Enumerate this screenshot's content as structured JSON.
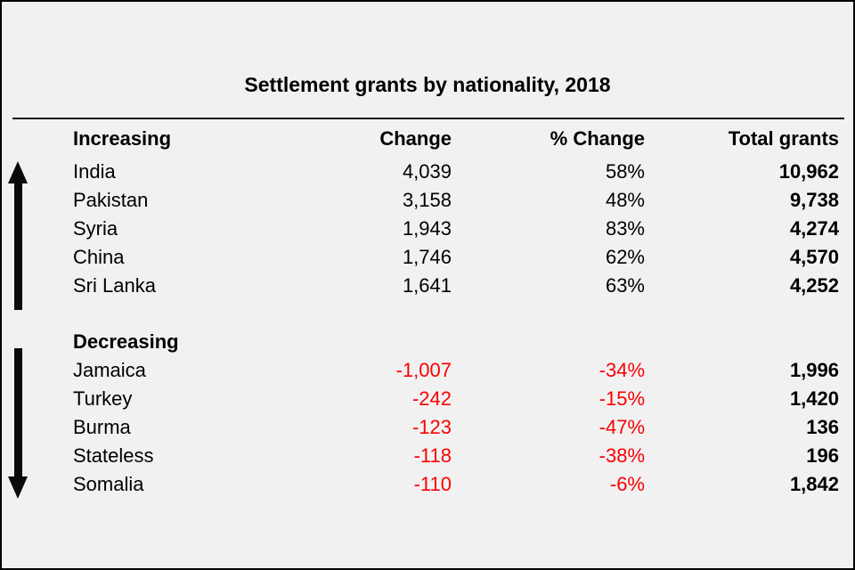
{
  "title": "Settlement grants by nationality, 2018",
  "colors": {
    "background": "#f1f1f2",
    "text": "#000000",
    "negative": "#fa0000",
    "arrow": "#0a0a0a"
  },
  "icons": {
    "up_arrow": "increase-arrow",
    "down_arrow": "decrease-arrow"
  },
  "chart_data": {
    "type": "table",
    "title": "Settlement grants by nationality, 2018",
    "columns": [
      "Increasing",
      "Change",
      "% Change",
      "Total grants"
    ],
    "sections": [
      {
        "label": "Increasing",
        "direction": "up",
        "rows": [
          {
            "name": "India",
            "change": 4039,
            "change_label": "4,039",
            "pct_change": 58,
            "pct_label": "58%",
            "total": 10962,
            "total_label": "10,962"
          },
          {
            "name": "Pakistan",
            "change": 3158,
            "change_label": "3,158",
            "pct_change": 48,
            "pct_label": "48%",
            "total": 9738,
            "total_label": "9,738"
          },
          {
            "name": "Syria",
            "change": 1943,
            "change_label": "1,943",
            "pct_change": 83,
            "pct_label": "83%",
            "total": 4274,
            "total_label": "4,274"
          },
          {
            "name": "China",
            "change": 1746,
            "change_label": "1,746",
            "pct_change": 62,
            "pct_label": "62%",
            "total": 4570,
            "total_label": "4,570"
          },
          {
            "name": "Sri Lanka",
            "change": 1641,
            "change_label": "1,641",
            "pct_change": 63,
            "pct_label": "63%",
            "total": 4252,
            "total_label": "4,252"
          }
        ]
      },
      {
        "label": "Decreasing",
        "direction": "down",
        "rows": [
          {
            "name": "Jamaica",
            "change": -1007,
            "change_label": "-1,007",
            "pct_change": -34,
            "pct_label": "-34%",
            "total": 1996,
            "total_label": "1,996"
          },
          {
            "name": "Turkey",
            "change": -242,
            "change_label": "-242",
            "pct_change": -15,
            "pct_label": "-15%",
            "total": 1420,
            "total_label": "1,420"
          },
          {
            "name": "Burma",
            "change": -123,
            "change_label": "-123",
            "pct_change": -47,
            "pct_label": "-47%",
            "total": 136,
            "total_label": "136"
          },
          {
            "name": "Stateless",
            "change": -118,
            "change_label": "-118",
            "pct_change": -38,
            "pct_label": "-38%",
            "total": 196,
            "total_label": "196"
          },
          {
            "name": "Somalia",
            "change": -110,
            "change_label": "-110",
            "pct_change": -6,
            "pct_label": "-6%",
            "total": 1842,
            "total_label": "1,842"
          }
        ]
      }
    ]
  }
}
